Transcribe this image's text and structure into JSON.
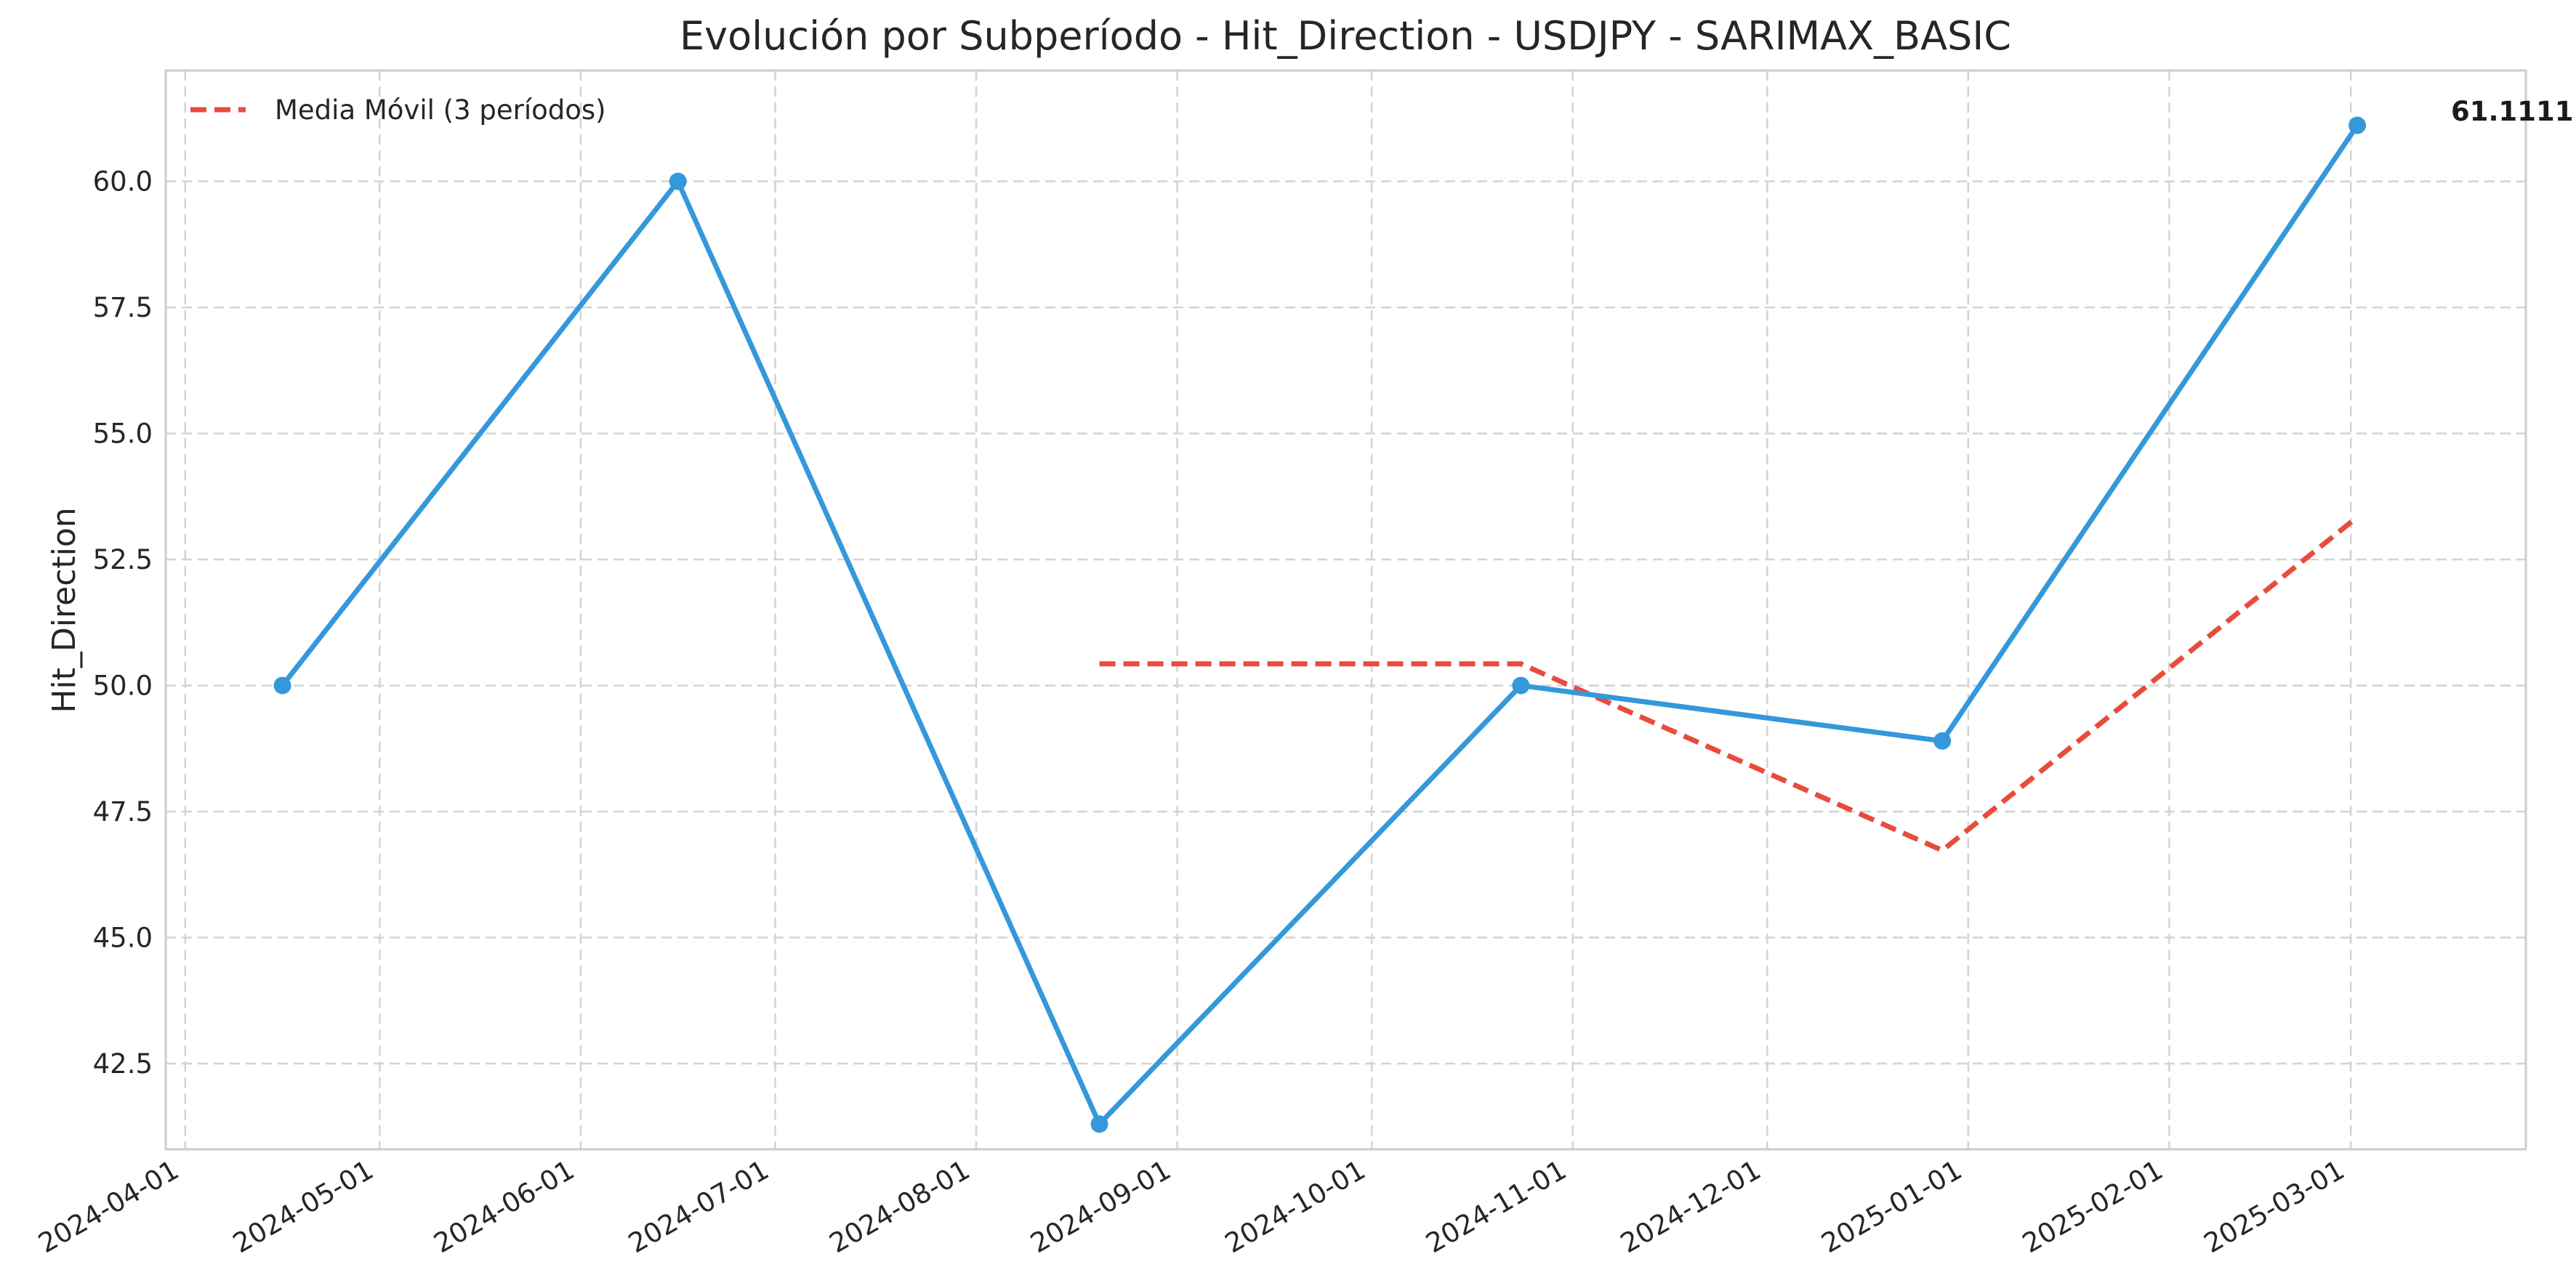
{
  "chart_data": {
    "type": "line",
    "title": "Evolución por Subperíodo - Hit_Direction - USDJPY - SARIMAX_BASIC",
    "xlabel": "",
    "ylabel": "Hit_Direction",
    "x_axis_type": "date",
    "xlim": [
      "2024-03-29",
      "2025-03-28"
    ],
    "ylim": [
      40.8,
      62.2
    ],
    "x_ticks": [
      "2024-04-01",
      "2024-05-01",
      "2024-06-01",
      "2024-07-01",
      "2024-08-01",
      "2024-09-01",
      "2024-10-01",
      "2024-11-01",
      "2024-12-01",
      "2025-01-01",
      "2025-02-01",
      "2025-03-01"
    ],
    "y_ticks": [
      "42.5",
      "45.0",
      "47.5",
      "50.0",
      "52.5",
      "55.0",
      "57.5",
      "60.0"
    ],
    "grid": true,
    "legend_position": "top-left",
    "series": [
      {
        "name": "",
        "style": "solid-with-markers",
        "color": "#3498db",
        "x": [
          "2024-04-16",
          "2024-06-16",
          "2024-08-20",
          "2024-10-24",
          "2024-12-28",
          "2025-03-02"
        ],
        "y": [
          50.0,
          60.0,
          41.3,
          50.0,
          48.9,
          61.1111
        ]
      },
      {
        "name": "Media Móvil (3 períodos)",
        "style": "dashed",
        "color": "#e74c3c",
        "x": [
          "2024-08-20",
          "2024-10-24",
          "2024-12-28",
          "2025-03-02"
        ],
        "y": [
          50.43,
          50.43,
          46.73,
          53.34
        ]
      }
    ],
    "annotations": [
      {
        "text": "61.1111",
        "x": "2025-03-02",
        "y": 61.1111
      }
    ]
  }
}
